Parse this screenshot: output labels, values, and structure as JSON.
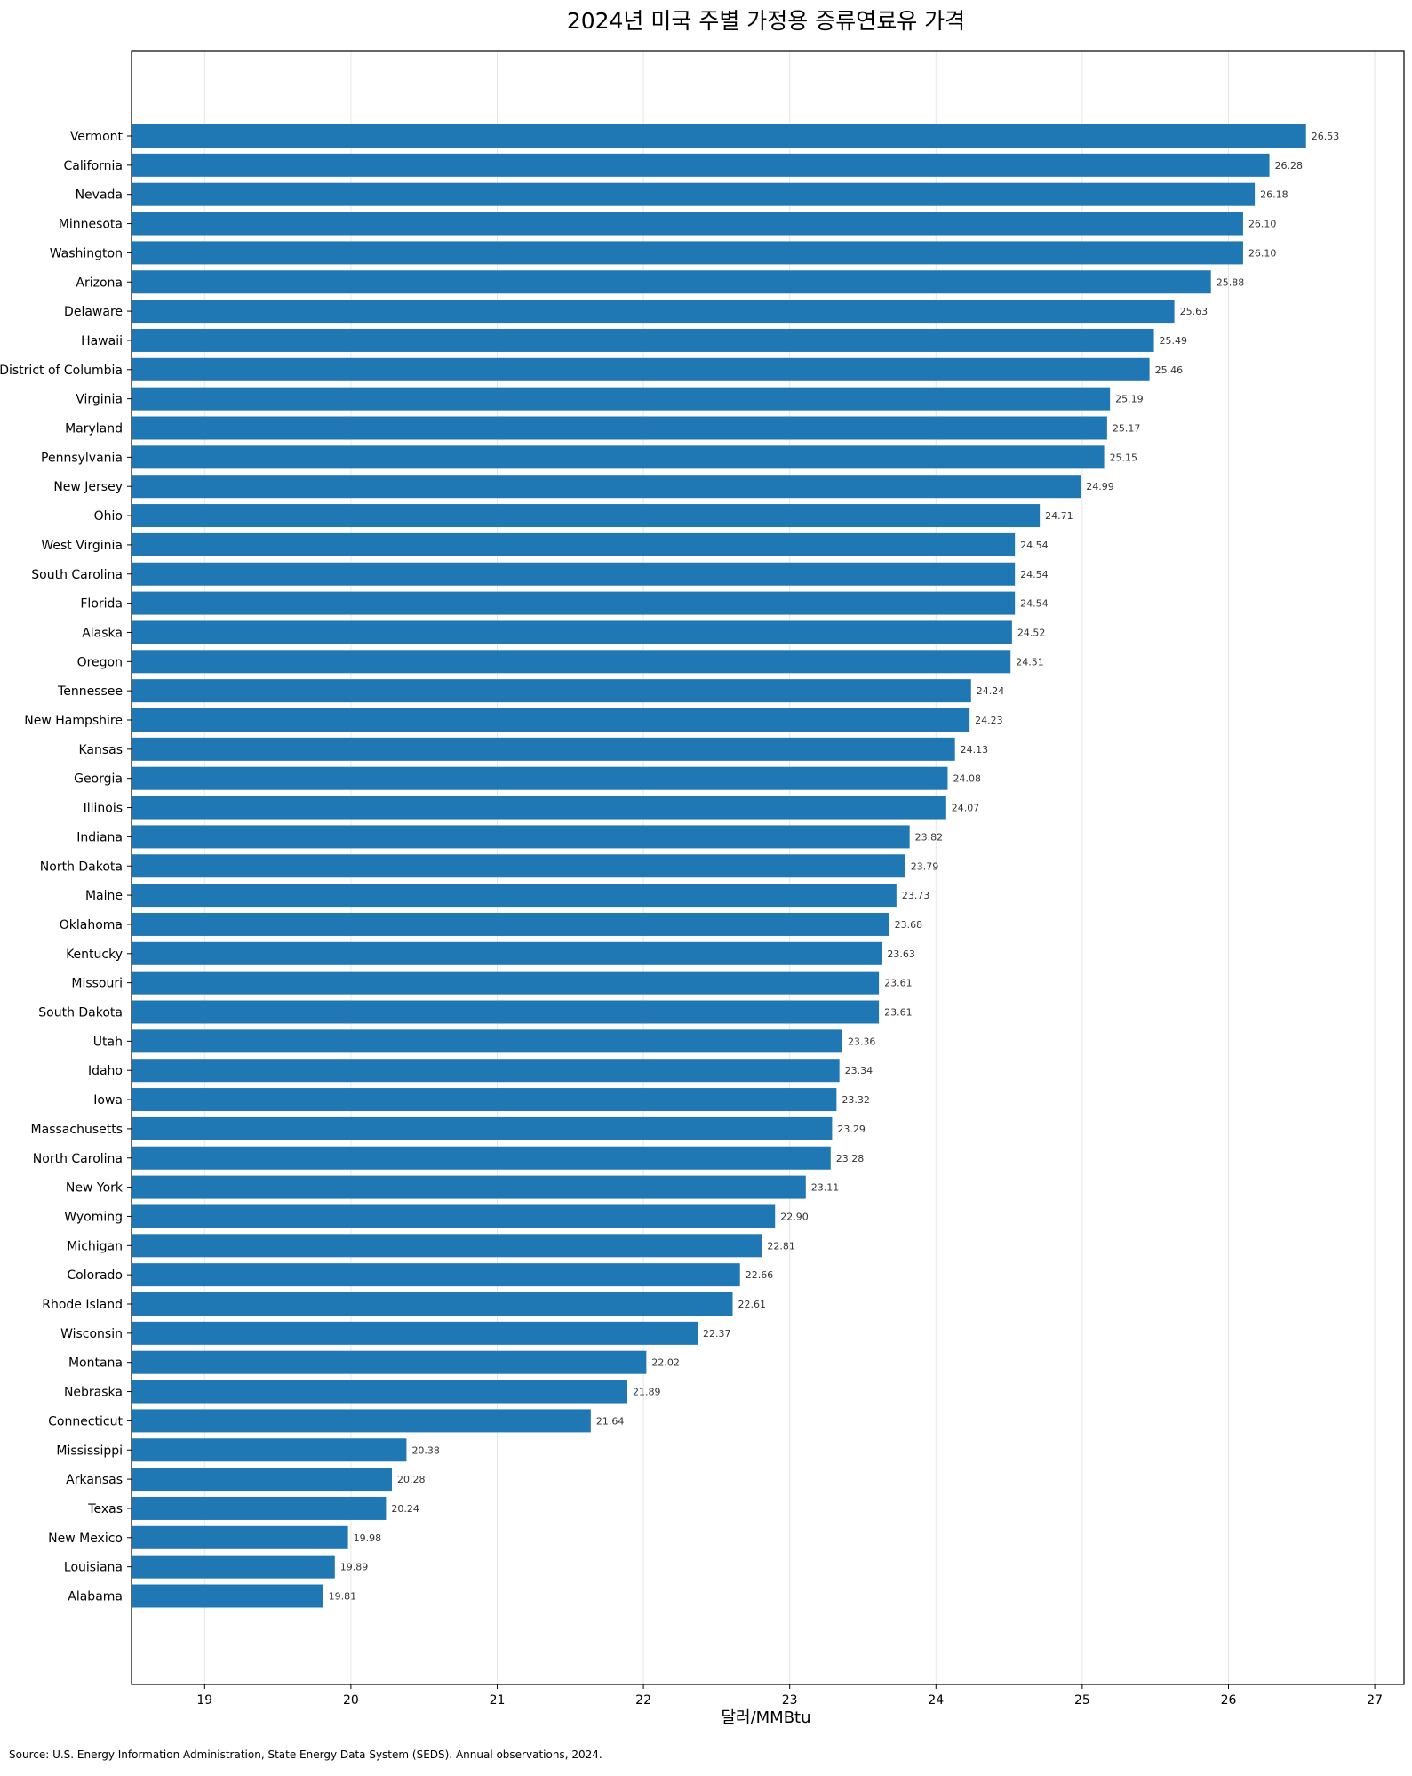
{
  "chart_data": {
    "type": "bar",
    "orientation": "horizontal",
    "title": "2024년 미국 주별 가정용 증류연료유 가격",
    "xlabel": "달러/MMBtu",
    "ylabel": "",
    "xlim": [
      18.5,
      27.2
    ],
    "xticks": [
      19,
      20,
      21,
      22,
      23,
      24,
      25,
      26,
      27
    ],
    "grid": "vertical",
    "bar_color": "#1f77b4",
    "categories": [
      "Vermont",
      "California",
      "Nevada",
      "Minnesota",
      "Washington",
      "Arizona",
      "Delaware",
      "Hawaii",
      "District of Columbia",
      "Virginia",
      "Maryland",
      "Pennsylvania",
      "New Jersey",
      "Ohio",
      "West Virginia",
      "South Carolina",
      "Florida",
      "Alaska",
      "Oregon",
      "Tennessee",
      "New Hampshire",
      "Kansas",
      "Georgia",
      "Illinois",
      "Indiana",
      "North Dakota",
      "Maine",
      "Oklahoma",
      "Kentucky",
      "Missouri",
      "South Dakota",
      "Utah",
      "Idaho",
      "Iowa",
      "Massachusetts",
      "North Carolina",
      "New York",
      "Wyoming",
      "Michigan",
      "Colorado",
      "Rhode Island",
      "Wisconsin",
      "Montana",
      "Nebraska",
      "Connecticut",
      "Mississippi",
      "Arkansas",
      "Texas",
      "New Mexico",
      "Louisiana",
      "Alabama"
    ],
    "values": [
      26.53,
      26.28,
      26.18,
      26.1,
      26.1,
      25.88,
      25.63,
      25.49,
      25.46,
      25.19,
      25.17,
      25.15,
      24.99,
      24.71,
      24.54,
      24.54,
      24.54,
      24.52,
      24.51,
      24.24,
      24.23,
      24.13,
      24.08,
      24.07,
      23.82,
      23.79,
      23.73,
      23.68,
      23.63,
      23.61,
      23.61,
      23.36,
      23.34,
      23.32,
      23.29,
      23.28,
      23.11,
      22.9,
      22.81,
      22.66,
      22.61,
      22.37,
      22.02,
      21.89,
      21.64,
      20.38,
      20.28,
      20.24,
      19.98,
      19.89,
      19.81
    ],
    "value_labels": [
      "26.53",
      "26.28",
      "26.18",
      "26.10",
      "26.10",
      "25.88",
      "25.63",
      "25.49",
      "25.46",
      "25.19",
      "25.17",
      "25.15",
      "24.99",
      "24.71",
      "24.54",
      "24.54",
      "24.54",
      "24.52",
      "24.51",
      "24.24",
      "24.23",
      "24.13",
      "24.08",
      "24.07",
      "23.82",
      "23.79",
      "23.73",
      "23.68",
      "23.63",
      "23.61",
      "23.61",
      "23.36",
      "23.34",
      "23.32",
      "23.29",
      "23.28",
      "23.11",
      "22.90",
      "22.81",
      "22.66",
      "22.61",
      "22.37",
      "22.02",
      "21.89",
      "21.64",
      "20.38",
      "20.28",
      "20.24",
      "19.98",
      "19.89",
      "19.81"
    ]
  },
  "source": "Source: U.S. Energy Information Administration, State Energy Data System (SEDS). Annual observations, 2024."
}
